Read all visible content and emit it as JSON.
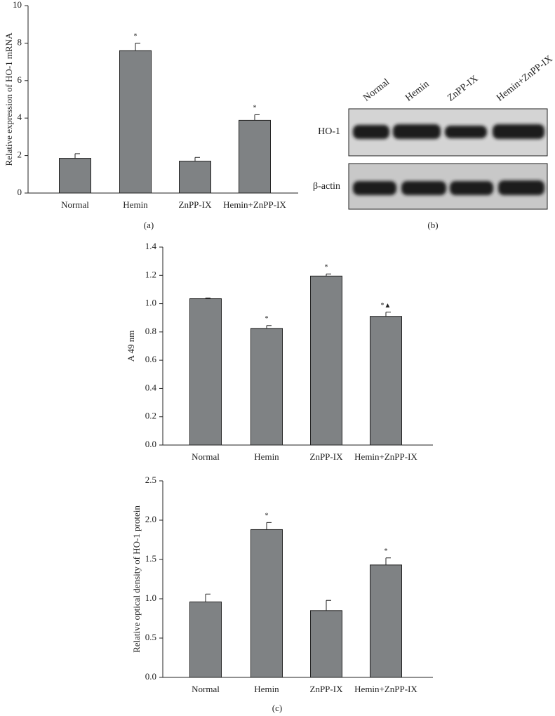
{
  "chart_data": [
    {
      "type": "bar",
      "y_label": "Relative expression of HO-1 mRNA",
      "panel_label": "(a)",
      "categories": [
        "Normal",
        "Hemin",
        "ZnPP-IX",
        "Hemin+ZnPP-IX"
      ],
      "values": [
        1.85,
        7.6,
        1.7,
        3.88
      ],
      "errors": [
        0.25,
        0.4,
        0.2,
        0.3
      ],
      "annotations": [
        null,
        "*",
        null,
        "*"
      ],
      "color": "#7f8284",
      "ylim": [
        0,
        10
      ],
      "yticks": [
        0,
        2,
        4,
        6,
        8,
        10
      ]
    },
    {
      "type": "bar",
      "y_label": "A 49 nm",
      "categories": [
        "Normal",
        "Hemin",
        "ZnPP-IX",
        "Hemin+ZnPP-IX"
      ],
      "values": [
        1.035,
        0.825,
        1.195,
        0.91
      ],
      "errors": [
        0.005,
        0.02,
        0.015,
        0.03
      ],
      "annotations": [
        null,
        "*",
        "*",
        "*▲"
      ],
      "color": "#7f8284",
      "ylim": [
        0,
        1.4
      ],
      "yticks": [
        {
          "value": 0,
          "label": "0.0"
        },
        0.2,
        0.4,
        0.6,
        0.8,
        {
          "value": 1,
          "label": "1.0"
        },
        1.2,
        1.4
      ]
    },
    {
      "type": "bar",
      "y_label": "Relative optical density of HO-1 protein",
      "panel_label": "(c)",
      "categories": [
        "Normal",
        "Hemin",
        "ZnPP-IX",
        "Hemin+ZnPP-IX"
      ],
      "values": [
        0.96,
        1.88,
        0.85,
        1.43
      ],
      "errors": [
        0.1,
        0.09,
        0.13,
        0.09
      ],
      "annotations": [
        null,
        "*",
        null,
        "*"
      ],
      "color": "#7f8284",
      "ylim": [
        0,
        2.5
      ],
      "yticks": [
        {
          "value": 0,
          "label": "0.0"
        },
        0.5,
        {
          "value": 1,
          "label": "1.0"
        },
        1.5,
        {
          "value": 2,
          "label": "2.0"
        },
        2.5
      ]
    }
  ],
  "blot": {
    "lanes": [
      "Normal",
      "Hemin",
      "ZnPP-IX",
      "Hemin+ZnPP-IX"
    ],
    "rows": [
      "HO-1",
      "β-actin"
    ],
    "panel_label": "(b)"
  }
}
